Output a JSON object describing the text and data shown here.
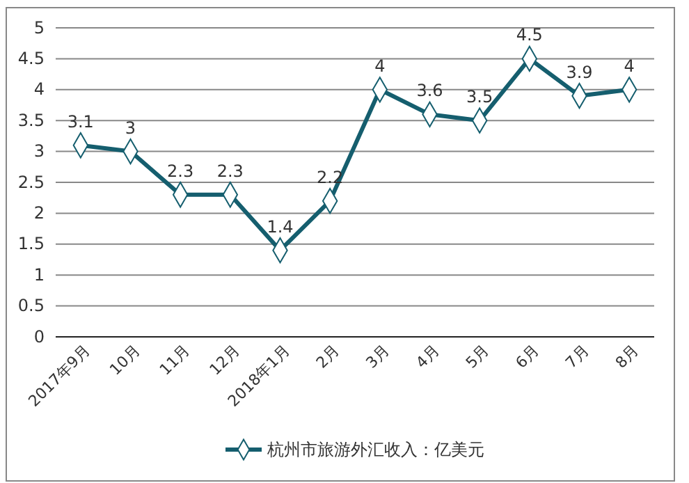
{
  "chart_data": {
    "type": "line",
    "categories": [
      "2017年9月",
      "10月",
      "11月",
      "12月",
      "2018年1月",
      "2月",
      "3月",
      "4月",
      "5月",
      "6月",
      "7月",
      "8月"
    ],
    "series": [
      {
        "name": "杭州市旅游外汇收入：亿美元",
        "color": "#155e6e",
        "values": [
          3.1,
          3,
          2.3,
          2.3,
          1.4,
          2.2,
          4,
          3.6,
          3.5,
          4.5,
          3.9,
          4
        ]
      }
    ],
    "ylim": [
      0,
      5
    ],
    "yticks": [
      "0",
      "0.5",
      "1",
      "1.5",
      "2",
      "2.5",
      "3",
      "3.5",
      "4",
      "4.5",
      "5"
    ],
    "grid": "y",
    "legend": "bottom",
    "marker": "diamond",
    "line_style": "solid",
    "data_labels": true
  }
}
